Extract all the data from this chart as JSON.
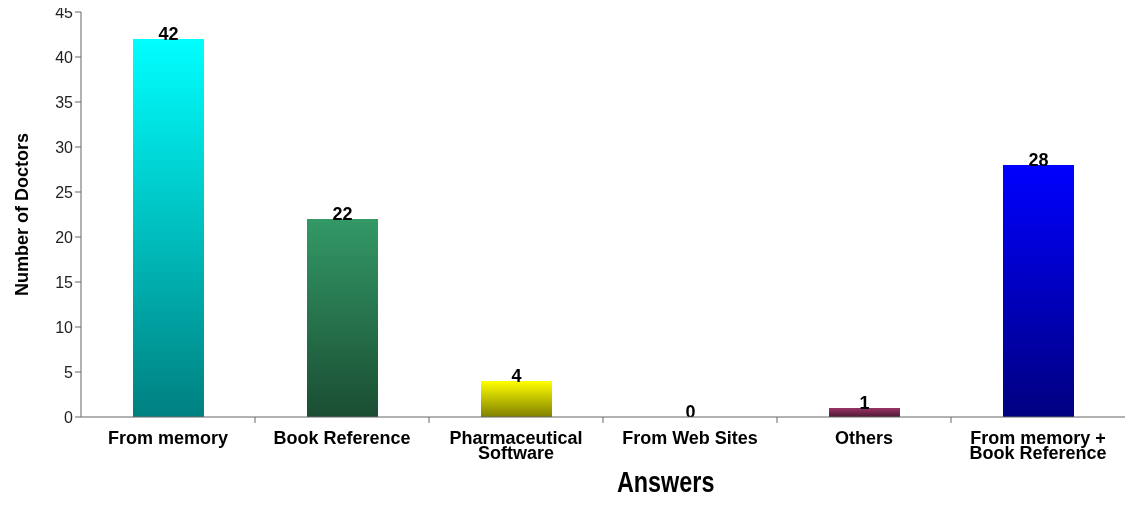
{
  "chart_data": {
    "type": "bar",
    "categories": [
      "From memory",
      "Book Reference",
      "Pharmaceutical Software",
      "From Web Sites",
      "Others",
      "From memory + Book Reference"
    ],
    "values": [
      42,
      22,
      4,
      0,
      1,
      28
    ],
    "colors": [
      "#00ffff",
      "#339966",
      "#ffff00",
      "#ff9900",
      "#993366",
      "#0000ff"
    ],
    "xlabel": "Answers",
    "ylabel": "Number of Doctors",
    "ylim": [
      0,
      45
    ],
    "yticks": [
      0,
      5,
      10,
      15,
      20,
      25,
      30,
      35,
      40,
      45
    ],
    "data_labels": true
  }
}
